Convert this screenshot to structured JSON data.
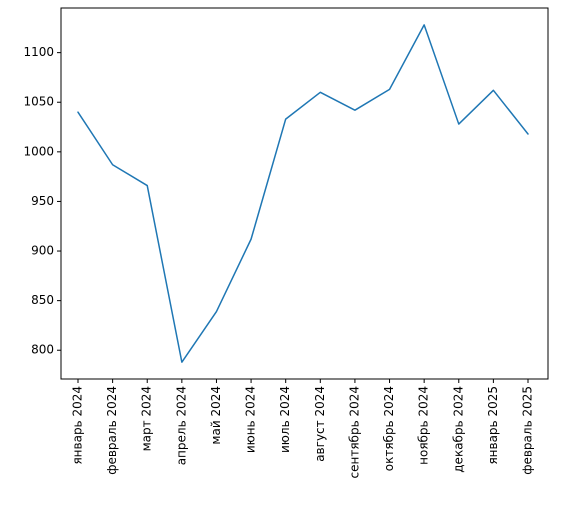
{
  "chart_data": {
    "type": "line",
    "title": "",
    "xlabel": "",
    "ylabel": "",
    "categories": [
      "январь 2024",
      "февраль 2024",
      "март 2024",
      "апрель 2024",
      "май 2024",
      "июнь 2024",
      "июль 2024",
      "август 2024",
      "сентябрь 2024",
      "октябрь 2024",
      "ноябрь 2024",
      "декабрь 2024",
      "январь 2025",
      "февраль 2025"
    ],
    "series": [
      {
        "values": [
          1040,
          987,
          966,
          788,
          839,
          912,
          1033,
          1060,
          1042,
          1063,
          1128,
          1028,
          1062,
          1018
        ]
      }
    ],
    "ylim": [
      771,
      1145
    ],
    "yticks": [
      800,
      850,
      900,
      950,
      1000,
      1050,
      1100
    ],
    "ytick_labels": [
      "800",
      "850",
      "900",
      "950",
      "1000",
      "1050",
      "1100"
    ],
    "grid": false,
    "line_color": "#1f77b4"
  }
}
